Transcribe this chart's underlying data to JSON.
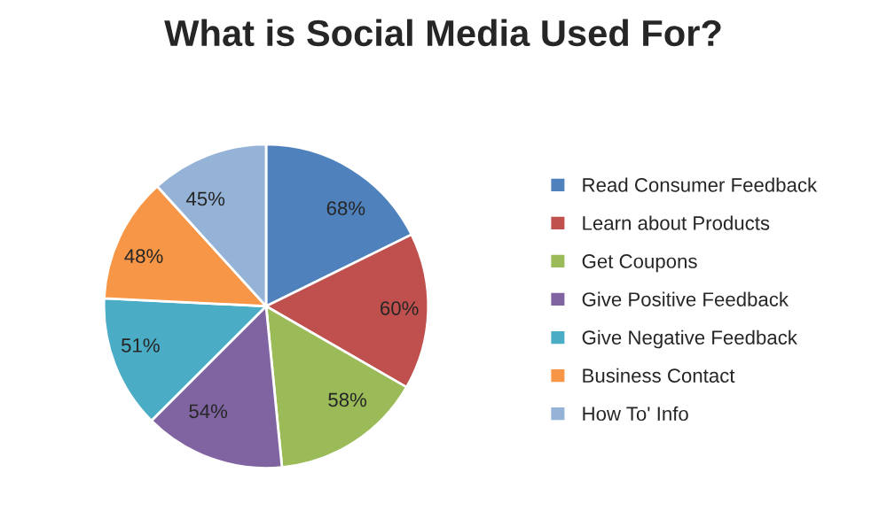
{
  "chart_data": {
    "type": "pie",
    "title": "What is Social Media Used For?",
    "categories": [
      "Read Consumer Feedback",
      "Learn about Products",
      "Get Coupons",
      "Give Positive Feedback",
      "Give Negative Feedback",
      "Business Contact",
      "How To' Info"
    ],
    "values": [
      68,
      60,
      58,
      54,
      51,
      48,
      45
    ],
    "colors": [
      "#4f81bd",
      "#c0504d",
      "#9bbb59",
      "#8064a2",
      "#4bacc6",
      "#f79646",
      "#95b3d7"
    ],
    "value_labels": [
      "68%",
      "60%",
      "58%",
      "54%",
      "51%",
      "48%",
      "45%"
    ],
    "legend": "right"
  }
}
